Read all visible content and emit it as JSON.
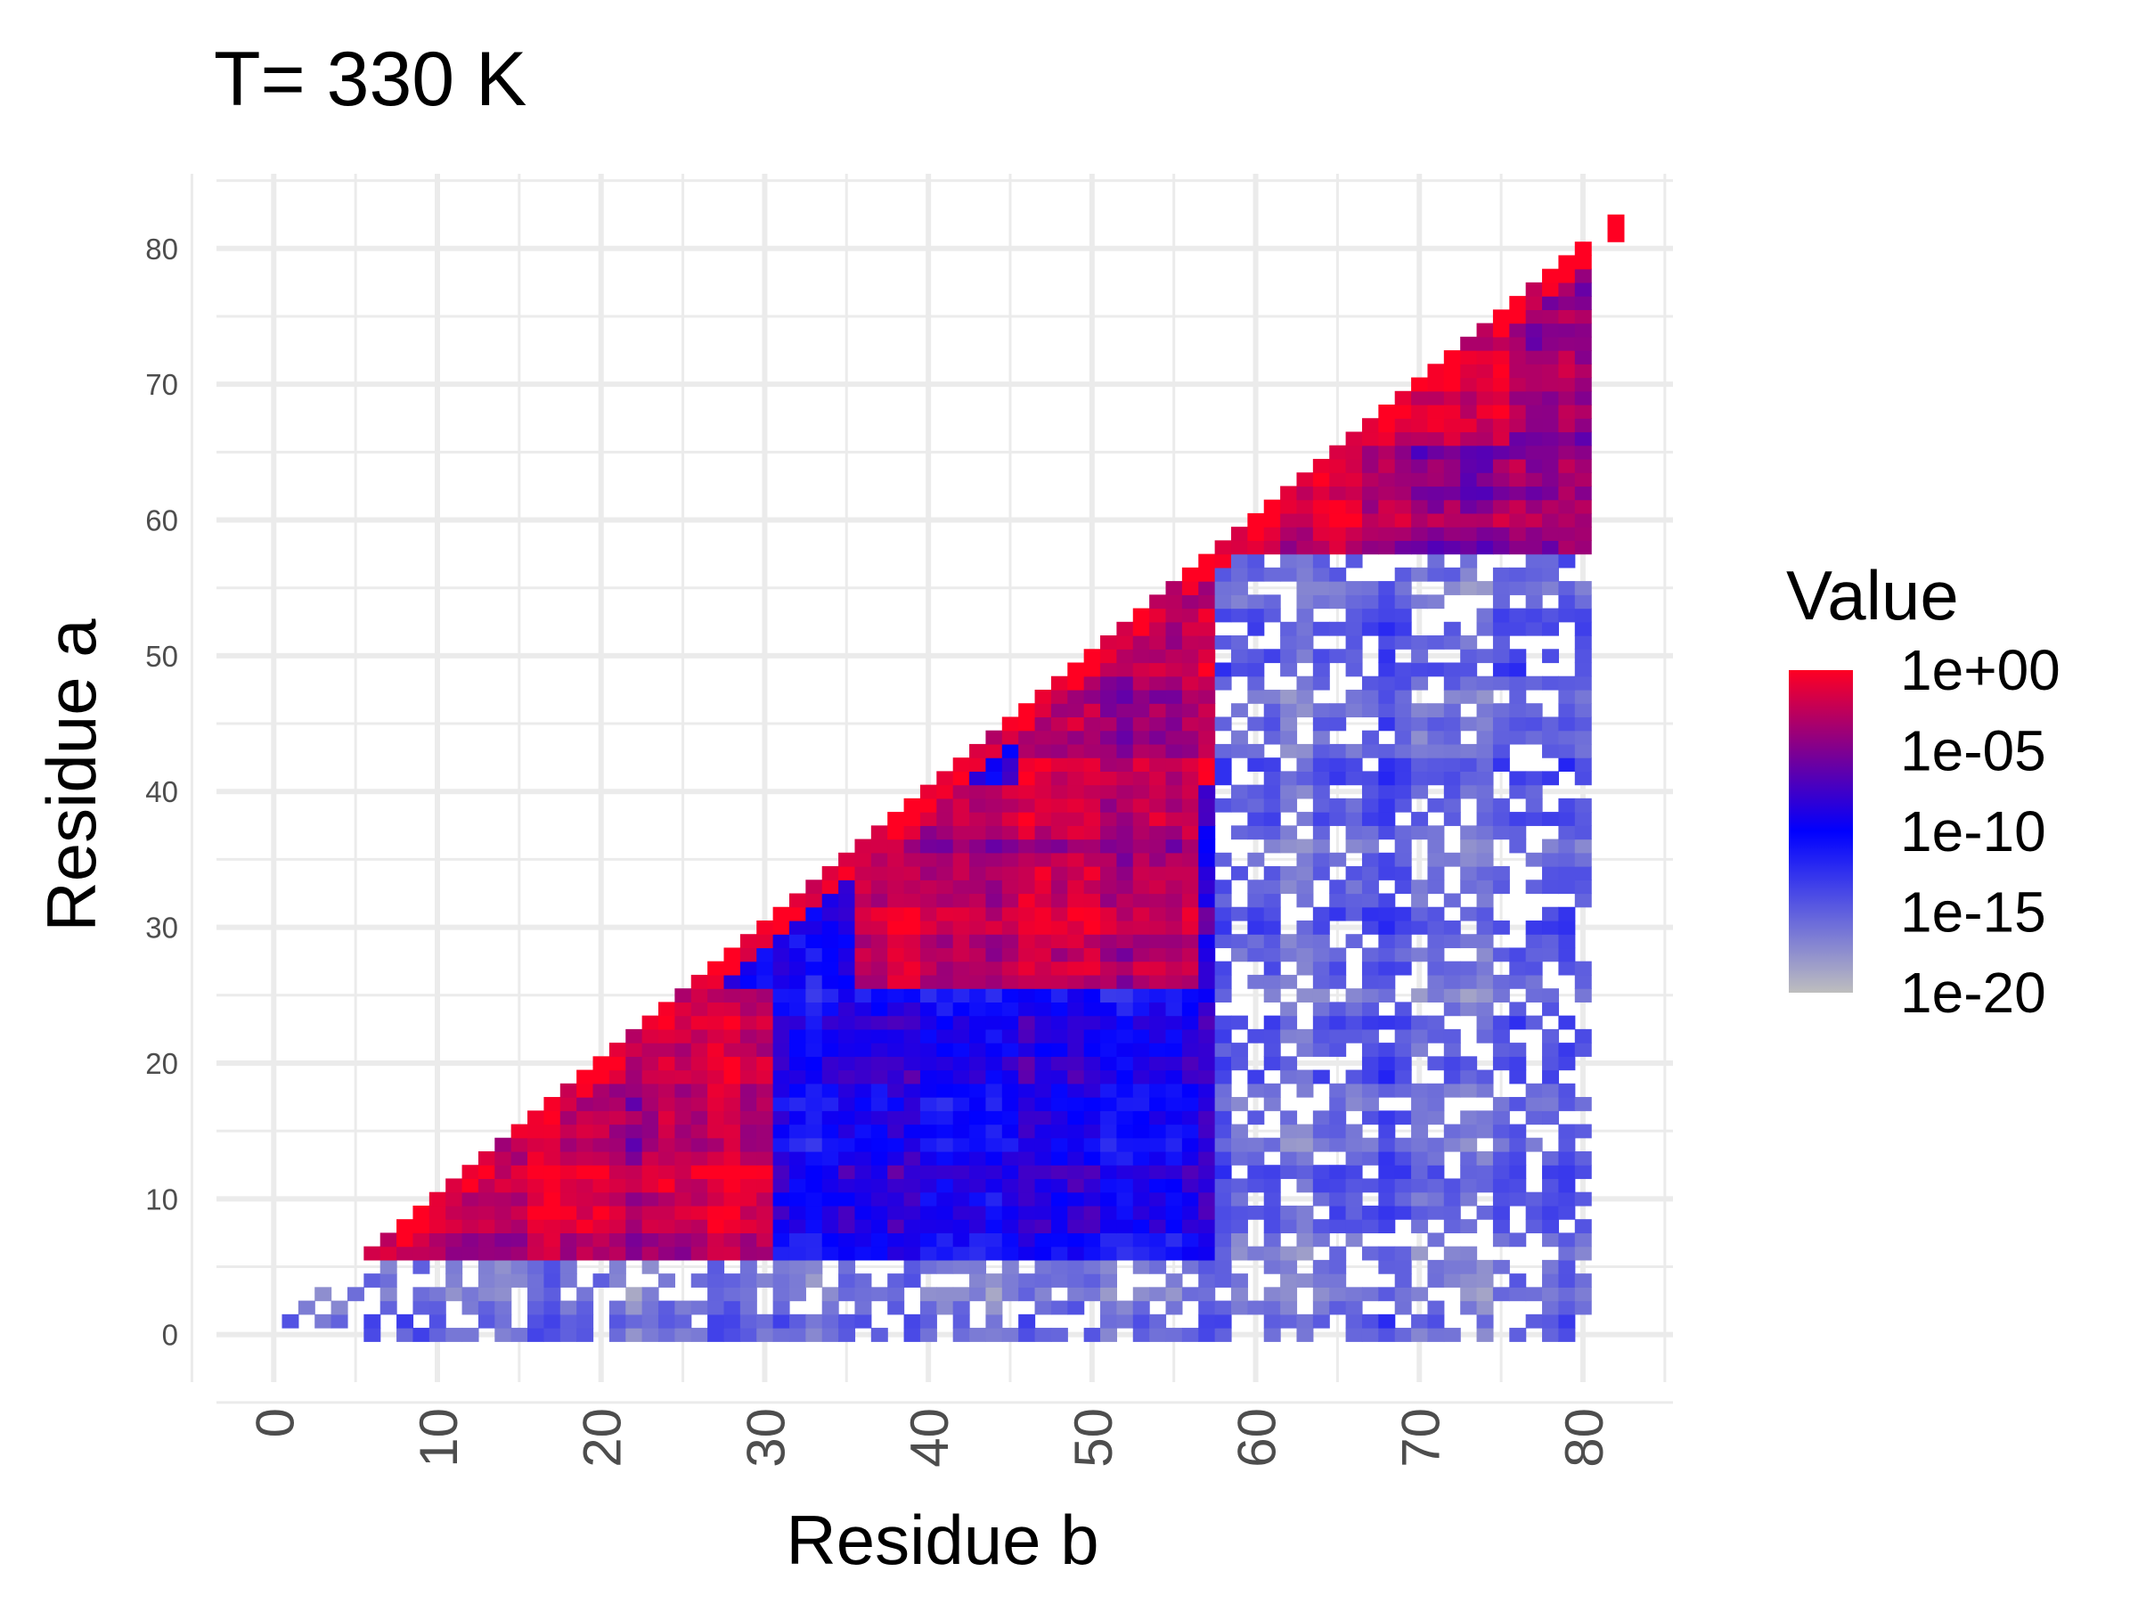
{
  "chart_data": {
    "type": "heatmap",
    "title": "T= 330 K",
    "xlabel": "Residue b",
    "ylabel": "Residue a",
    "xlim": [
      -3.5,
      85.5
    ],
    "ylim": [
      -3.5,
      85.5
    ],
    "x_ticks": [
      "0",
      "10",
      "20",
      "30",
      "40",
      "50",
      "60",
      "70",
      "80"
    ],
    "y_ticks": [
      "0",
      "10",
      "20",
      "30",
      "40",
      "50",
      "60",
      "70",
      "80"
    ],
    "grid": true,
    "residue_count": 80,
    "color_scale": {
      "type": "log10",
      "domain": [
        -20,
        0
      ],
      "stops": [
        {
          "log10": -20,
          "color": "#bebebe"
        },
        {
          "log10": -10,
          "color": "#0000ff"
        },
        {
          "log10": 0,
          "color": "#ff0022"
        }
      ]
    },
    "legend": {
      "title": "Value",
      "labels": [
        "1e+00",
        "1e-05",
        "1e-10",
        "1e-15",
        "1e-20"
      ],
      "placement": "right"
    },
    "blocks_log10": [
      {
        "a": [
          0,
          5
        ],
        "b": [
          0,
          80
        ],
        "value": -16.5
      },
      {
        "a": [
          6,
          57
        ],
        "b": [
          6,
          57
        ],
        "value": -9.5
      },
      {
        "a": [
          6,
          57
        ],
        "b": [
          58,
          80
        ],
        "value": -15.5
      },
      {
        "a": [
          58,
          80
        ],
        "b": [
          58,
          80
        ],
        "value": -4.5
      },
      {
        "a": [
          6,
          12
        ],
        "b": [
          6,
          30
        ],
        "value": -2.0
      },
      {
        "a": [
          13,
          25
        ],
        "b": [
          13,
          30
        ],
        "value": -2.5
      },
      {
        "a": [
          26,
          40
        ],
        "b": [
          36,
          56
        ],
        "value": -2.5
      },
      {
        "a": [
          41,
          57
        ],
        "b": [
          46,
          57
        ],
        "value": -3.0
      },
      {
        "a": [
          58,
          66
        ],
        "b": [
          58,
          66
        ],
        "value": -1.5
      },
      {
        "a": [
          66,
          75
        ],
        "b": [
          66,
          75
        ],
        "value": -1.0
      },
      {
        "a": [
          81,
          81
        ],
        "b": [
          81,
          81
        ],
        "value": 0
      }
    ]
  }
}
